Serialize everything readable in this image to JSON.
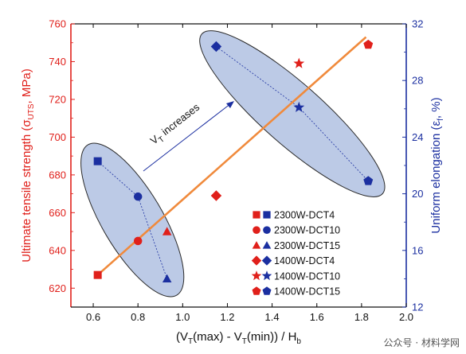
{
  "chart_data": {
    "type": "scatter",
    "xlabel_parts": [
      "(V",
      "T",
      "(max) - V",
      "T",
      "(min)) / H",
      "b"
    ],
    "ylabel_left_parts": [
      "Ultimate tensile strength (σ",
      "UTS",
      ", MPa)"
    ],
    "ylabel_right_parts": [
      "Uniform elongation (ε",
      "f",
      ", %)"
    ],
    "xlim": [
      0.5,
      2.0
    ],
    "ylim_left": [
      610,
      760
    ],
    "ylim_right": [
      12,
      32
    ],
    "x_ticks": [
      "0.6",
      "0.8",
      "1.0",
      "1.2",
      "1.4",
      "1.6",
      "1.8",
      "2.0"
    ],
    "y_left_ticks": [
      "620",
      "640",
      "660",
      "680",
      "700",
      "720",
      "740",
      "760"
    ],
    "y_right_ticks": [
      "12",
      "16",
      "20",
      "24",
      "28",
      "32"
    ],
    "colors": {
      "strength": "#e0201b",
      "elongation": "#1b2fa0",
      "fit": "#f08a3c",
      "ellipse": "#9fb3dc"
    },
    "series": [
      {
        "name": "2300W-DCT4",
        "marker": "square",
        "x": 0.62,
        "strength": 627,
        "elongation": 22.3
      },
      {
        "name": "2300W-DCT10",
        "marker": "circle",
        "x": 0.8,
        "strength": 645,
        "elongation": 19.8
      },
      {
        "name": "2300W-DCT15",
        "marker": "triangle",
        "x": 0.93,
        "strength": 650,
        "elongation": 14.0
      },
      {
        "name": "1400W-DCT4",
        "marker": "diamond",
        "x": 1.15,
        "strength": 669,
        "elongation": 30.4
      },
      {
        "name": "1400W-DCT10",
        "marker": "star",
        "x": 1.52,
        "strength": 739,
        "elongation": 26.1
      },
      {
        "name": "1400W-DCT15",
        "marker": "pentagon",
        "x": 1.83,
        "strength": 749,
        "elongation": 20.9
      }
    ],
    "fit_line": {
      "x": [
        0.62,
        1.82
      ],
      "strength": [
        627,
        753
      ]
    },
    "annotation_parts": [
      "V",
      "T",
      " increases"
    ],
    "legend_position": "lower-right"
  },
  "watermark": "公众号 · 材料学网"
}
